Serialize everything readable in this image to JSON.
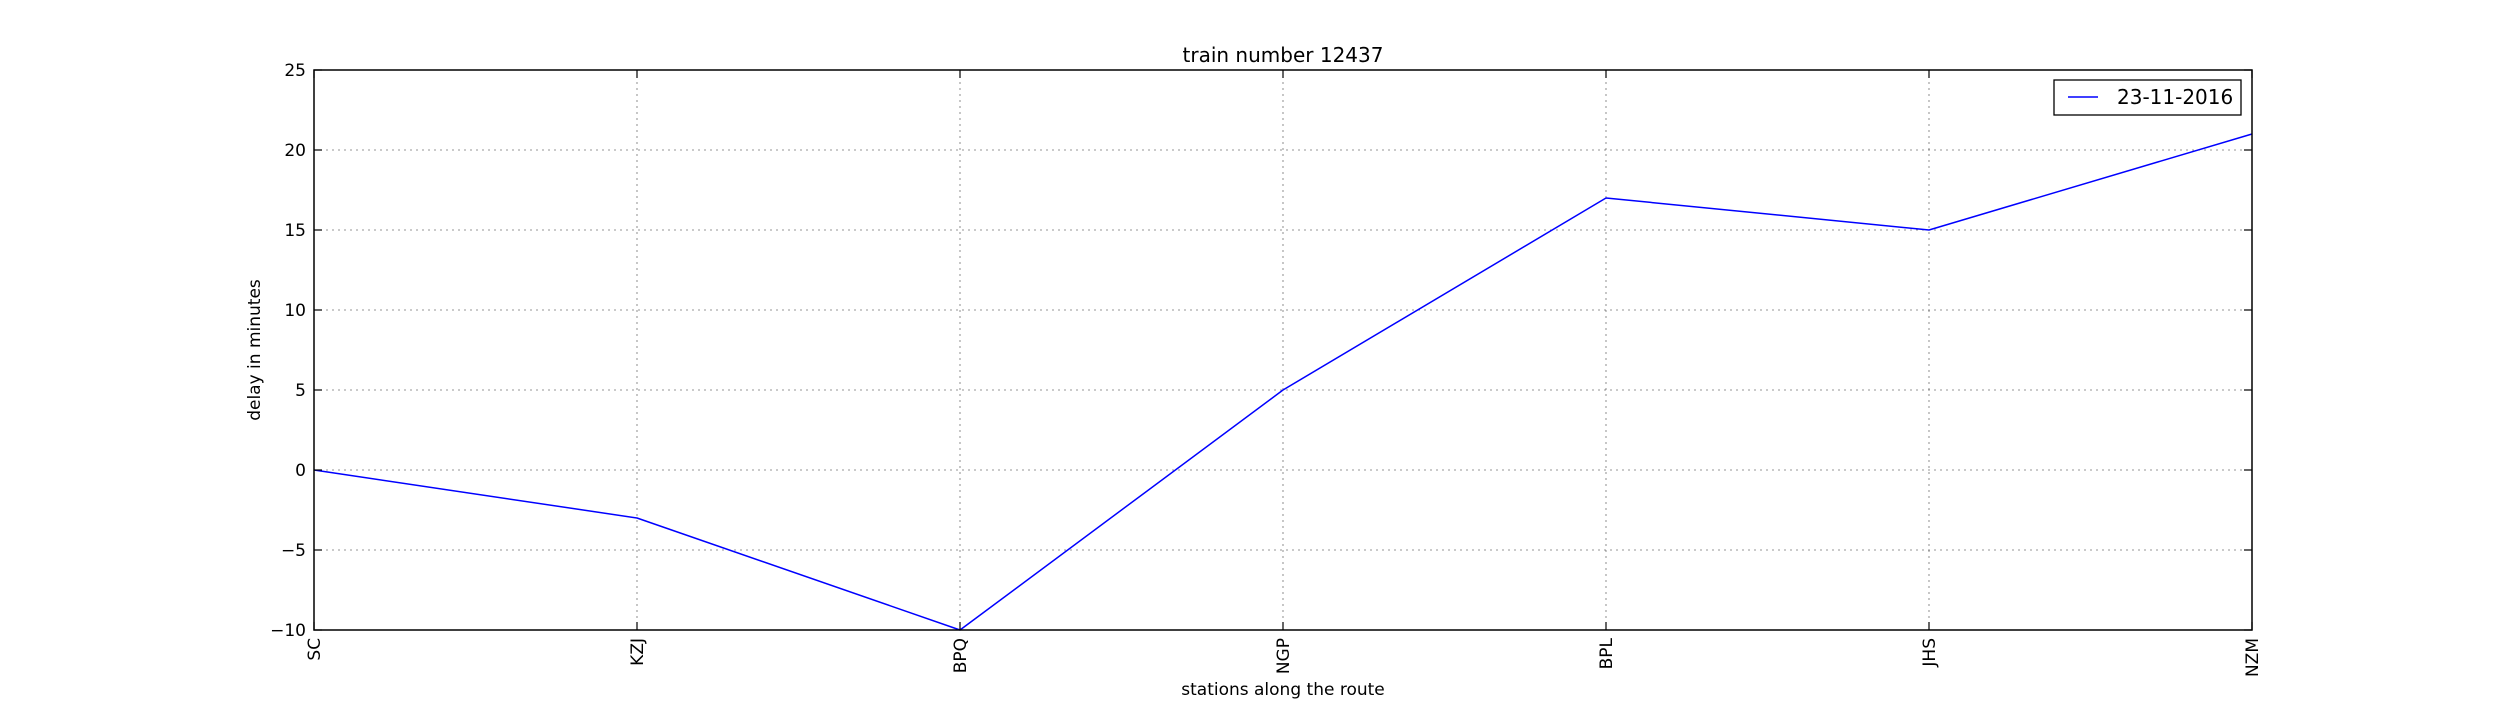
{
  "chart_data": {
    "type": "line",
    "title": "train number 12437",
    "xlabel": "stations along the route",
    "ylabel": "delay in minutes",
    "categories": [
      "SC",
      "KZJ",
      "BPQ",
      "NGP",
      "BPL",
      "JHS",
      "NZM"
    ],
    "series": [
      {
        "name": "23-11-2016",
        "values": [
          0,
          -3,
          -10,
          5,
          17,
          15,
          21
        ],
        "color": "#0000ff"
      }
    ],
    "ylim": [
      -10,
      25
    ],
    "yticks": [
      -10,
      -5,
      0,
      5,
      10,
      15,
      20,
      25
    ],
    "ytick_labels": [
      "−10",
      "−5",
      "0",
      "5",
      "10",
      "15",
      "20",
      "25"
    ],
    "grid": true,
    "legend_position": "top-right"
  }
}
